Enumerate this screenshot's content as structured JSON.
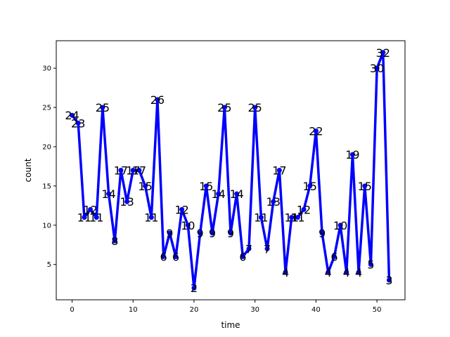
{
  "chart_data": {
    "type": "line",
    "title": "",
    "xlabel": "time",
    "ylabel": "count",
    "xlim": [
      -2.6,
      54.6
    ],
    "ylim": [
      0.5,
      33.5
    ],
    "xticks": [
      0,
      10,
      20,
      30,
      40,
      50
    ],
    "yticks": [
      5,
      10,
      15,
      20,
      25,
      30
    ],
    "grid": false,
    "line_color": "#0000ff",
    "marker": "circle",
    "x": [
      0,
      1,
      2,
      3,
      4,
      5,
      6,
      7,
      8,
      9,
      10,
      11,
      12,
      13,
      14,
      15,
      16,
      17,
      18,
      19,
      20,
      21,
      22,
      23,
      24,
      25,
      26,
      27,
      28,
      29,
      30,
      31,
      32,
      33,
      34,
      35,
      36,
      37,
      38,
      39,
      40,
      41,
      42,
      43,
      44,
      45,
      46,
      47,
      48,
      49,
      50,
      51,
      52
    ],
    "values": [
      24,
      23,
      11,
      12,
      11,
      25,
      14,
      8,
      17,
      13,
      17,
      17,
      15,
      11,
      26,
      6,
      9,
      6,
      12,
      10,
      2,
      9,
      15,
      9,
      14,
      25,
      9,
      14,
      6,
      7,
      25,
      11,
      7,
      13,
      17,
      4,
      11,
      11,
      12,
      15,
      22,
      9,
      4,
      6,
      10,
      4,
      19,
      4,
      15,
      5,
      30,
      32,
      3
    ],
    "data_labels": [
      "24",
      "23",
      "11",
      "12",
      "11",
      "25",
      "14",
      "8",
      "17",
      "13",
      "17",
      "17",
      "15",
      "11",
      "26",
      "6",
      "9",
      "6",
      "12",
      "10",
      "2",
      "9",
      "15",
      "9",
      "14",
      "25",
      "9",
      "14",
      "6",
      "7",
      "25",
      "11",
      "7",
      "13",
      "17",
      "4",
      "11",
      "11",
      "12",
      "15",
      "22",
      "9",
      "4",
      "6",
      "10",
      "4",
      "19",
      "4",
      "15",
      "5",
      "30",
      "32",
      "3"
    ]
  }
}
